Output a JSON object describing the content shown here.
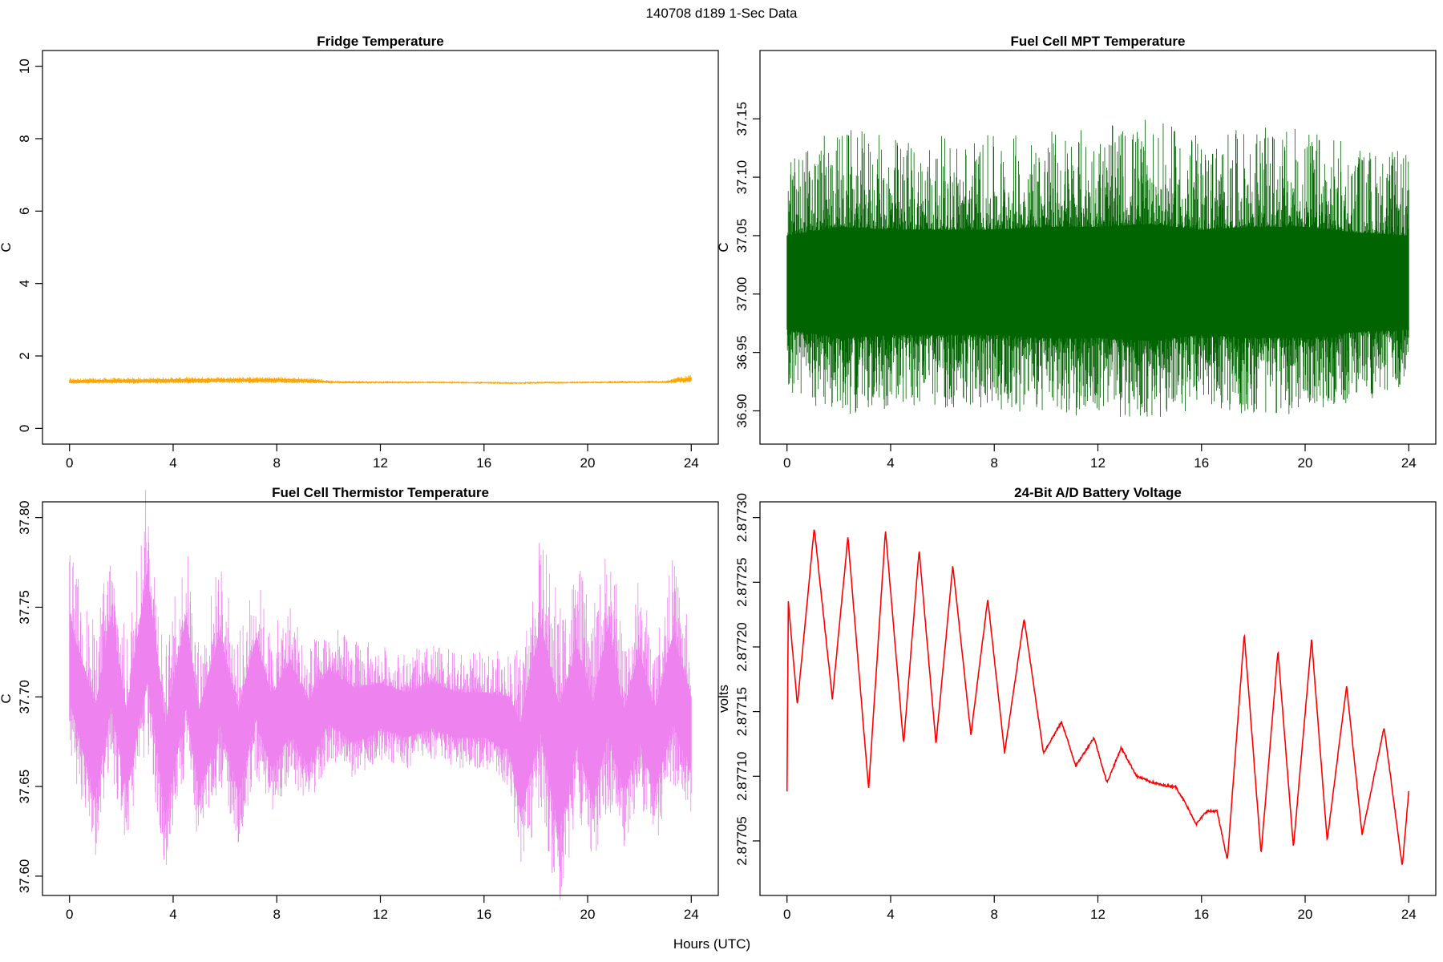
{
  "figure": {
    "suptitle": "140708   d189   1-Sec Data",
    "shared_xlabel": "Hours (UTC)"
  },
  "chart_data": [
    {
      "type": "line",
      "title": "Fridge Temperature",
      "xlabel": "Hours (UTC)",
      "ylabel": "C",
      "xlim": [
        0,
        24
      ],
      "ylim": [
        0,
        10
      ],
      "xticks": [
        0,
        4,
        8,
        12,
        16,
        20,
        24
      ],
      "yticks": [
        0,
        2,
        4,
        6,
        8,
        10
      ],
      "ytick_labels": [
        "0",
        "2",
        "4",
        "6",
        "8",
        "10"
      ],
      "color": "#ffa500",
      "series": [
        {
          "name": "Fridge Temperature",
          "x": [
            0,
            2,
            4,
            6,
            8,
            9.5,
            10,
            12,
            14,
            16,
            17,
            18,
            20,
            22,
            23,
            23.5,
            24
          ],
          "center": [
            1.3,
            1.31,
            1.32,
            1.33,
            1.33,
            1.31,
            1.28,
            1.27,
            1.27,
            1.26,
            1.25,
            1.26,
            1.27,
            1.28,
            1.28,
            1.33,
            1.36
          ],
          "spread": [
            0.13,
            0.13,
            0.14,
            0.14,
            0.14,
            0.12,
            0.07,
            0.06,
            0.05,
            0.05,
            0.05,
            0.05,
            0.05,
            0.06,
            0.06,
            0.14,
            0.17
          ]
        }
      ]
    },
    {
      "type": "line",
      "title": "Fuel Cell MPT Temperature",
      "xlabel": "Hours (UTC)",
      "ylabel": "C",
      "xlim": [
        0,
        24
      ],
      "ylim": [
        36.885,
        37.195
      ],
      "xticks": [
        0,
        4,
        8,
        12,
        16,
        20,
        24
      ],
      "yticks": [
        36.9,
        36.95,
        37.0,
        37.05,
        37.1,
        37.15
      ],
      "ytick_labels": [
        "36.90",
        "36.95",
        "37.00",
        "37.05",
        "37.10",
        "37.15"
      ],
      "color": "#006400",
      "series": [
        {
          "name": "Fuel Cell MPT Temperature",
          "x": [
            0,
            2,
            4,
            6,
            8,
            10,
            12,
            14,
            16,
            18,
            20,
            22,
            24
          ],
          "center": [
            37.01,
            37.01,
            37.01,
            37.01,
            37.01,
            37.01,
            37.01,
            37.01,
            37.01,
            37.01,
            37.01,
            37.01,
            37.01
          ],
          "spread": [
            0.16,
            0.19,
            0.18,
            0.18,
            0.18,
            0.19,
            0.19,
            0.2,
            0.18,
            0.19,
            0.19,
            0.17,
            0.16
          ]
        }
      ]
    },
    {
      "type": "line",
      "title": "Fuel Cell Thermistor Temperature",
      "xlabel": "Hours (UTC)",
      "ylabel": "C",
      "xlim": [
        0,
        24
      ],
      "ylim": [
        37.598,
        37.8
      ],
      "xticks": [
        0,
        4,
        8,
        12,
        16,
        20,
        24
      ],
      "yticks": [
        37.6,
        37.65,
        37.7,
        37.75,
        37.8
      ],
      "ytick_labels": [
        "37.60",
        "37.65",
        "37.70",
        "37.75",
        "37.80"
      ],
      "color": "#ee82ee",
      "series": [
        {
          "name": "Fuel Cell Thermistor Temperature",
          "x": [
            0,
            1,
            1.6,
            2.2,
            3,
            3.7,
            4.5,
            5,
            5.8,
            6.5,
            7.2,
            7.8,
            8.5,
            9.2,
            10,
            11,
            12,
            13,
            14,
            15,
            16,
            17,
            17.4,
            18.2,
            18.9,
            19.6,
            20.2,
            20.8,
            21.4,
            22,
            22.6,
            23.3,
            24
          ],
          "center": [
            37.72,
            37.67,
            37.72,
            37.67,
            37.74,
            37.66,
            37.72,
            37.67,
            37.71,
            37.67,
            37.71,
            37.68,
            37.7,
            37.68,
            37.7,
            37.69,
            37.695,
            37.69,
            37.695,
            37.69,
            37.69,
            37.685,
            37.66,
            37.71,
            37.66,
            37.7,
            37.67,
            37.71,
            37.67,
            37.7,
            37.67,
            37.71,
            37.68
          ],
          "spread": [
            0.09,
            0.1,
            0.1,
            0.09,
            0.12,
            0.1,
            0.1,
            0.09,
            0.1,
            0.09,
            0.09,
            0.08,
            0.08,
            0.07,
            0.06,
            0.06,
            0.05,
            0.05,
            0.05,
            0.05,
            0.05,
            0.06,
            0.1,
            0.12,
            0.14,
            0.11,
            0.11,
            0.12,
            0.09,
            0.1,
            0.09,
            0.1,
            0.08
          ]
        }
      ]
    },
    {
      "type": "line",
      "title": "24-Bit A/D Battery Voltage",
      "xlabel": "Hours (UTC)",
      "ylabel": "volts",
      "xlim": [
        0,
        24
      ],
      "ylim": [
        2.87702,
        2.8773
      ],
      "xticks": [
        0,
        4,
        8,
        12,
        16,
        20,
        24
      ],
      "yticks": [
        2.87705,
        2.8771,
        2.87715,
        2.8772,
        2.87725,
        2.8773
      ],
      "ytick_labels": [
        "2.87705",
        "2.87710",
        "2.87715",
        "2.87720",
        "2.87725",
        "2.87730"
      ],
      "color": "#ff0000",
      "series": [
        {
          "name": "24-Bit A/D Battery Voltage",
          "x": [
            0.0,
            0.05,
            0.4,
            1.05,
            1.75,
            2.35,
            3.15,
            3.8,
            4.5,
            5.1,
            5.75,
            6.4,
            7.1,
            7.75,
            8.4,
            9.15,
            9.9,
            10.6,
            11.15,
            11.85,
            12.35,
            12.9,
            13.5,
            14.0,
            14.5,
            15.0,
            15.3,
            15.8,
            16.2,
            16.6,
            17.0,
            17.65,
            18.3,
            18.95,
            19.55,
            20.25,
            20.85,
            21.6,
            22.2,
            23.05,
            23.75,
            24.0
          ],
          "values": [
            2.877088,
            2.877235,
            2.877155,
            2.877292,
            2.87716,
            2.877285,
            2.87709,
            2.87729,
            2.877125,
            2.877275,
            2.877125,
            2.877263,
            2.877132,
            2.877237,
            2.877118,
            2.877222,
            2.877118,
            2.877142,
            2.877108,
            2.87713,
            2.877095,
            2.877122,
            2.8771,
            2.877096,
            2.877093,
            2.877092,
            2.877082,
            2.877063,
            2.877073,
            2.877073,
            2.877035,
            2.87721,
            2.87704,
            2.877197,
            2.877045,
            2.877206,
            2.87705,
            2.87717,
            2.877055,
            2.877138,
            2.87703,
            2.877088
          ]
        }
      ]
    }
  ]
}
